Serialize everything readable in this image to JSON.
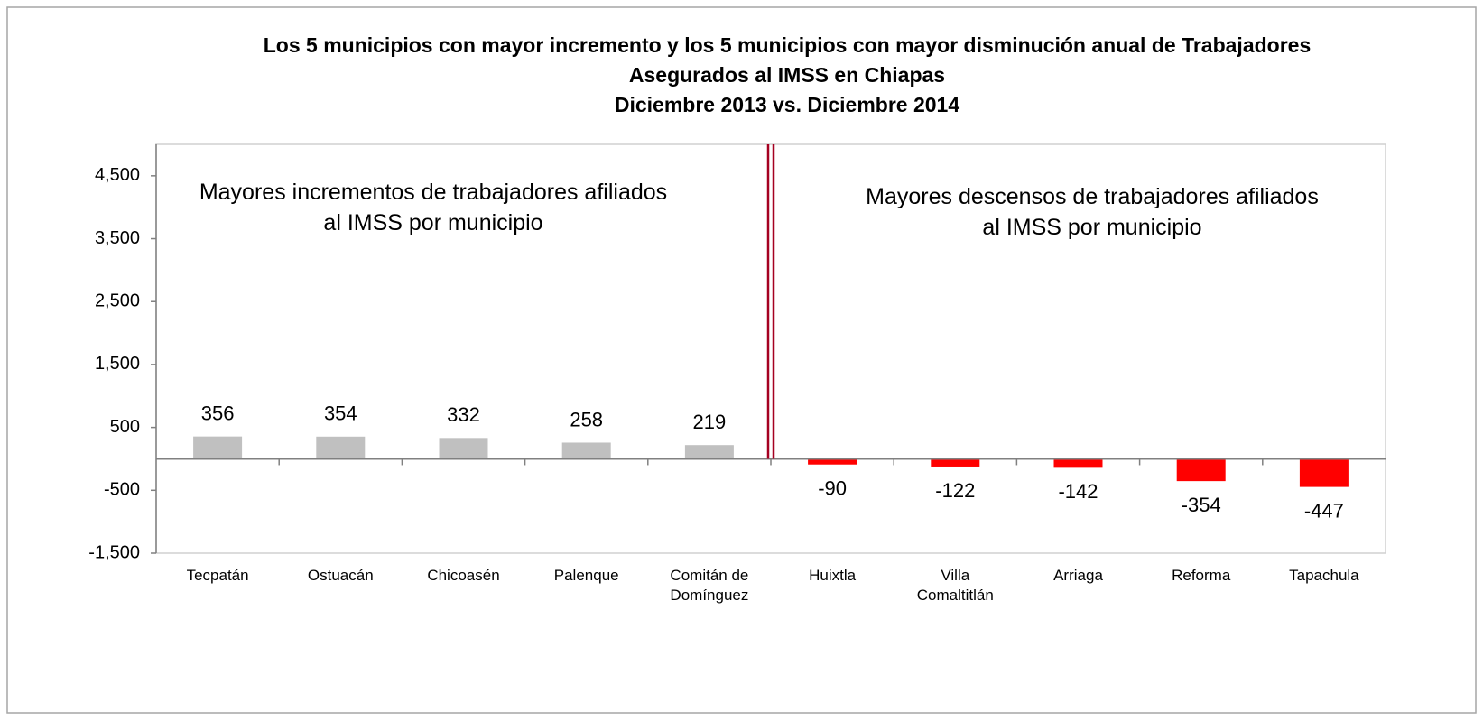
{
  "chart_data": {
    "type": "bar",
    "title": "Los 5 municipios con mayor incremento y los 5 municipios con mayor disminución anual de Trabajadores Asegurados al IMSS en Chiapas",
    "subtitle": "Diciembre 2013 vs. Diciembre 2014",
    "annotations": [
      "Mayores incrementos de trabajadores afiliados al IMSS por municipio",
      "Mayores descensos de trabajadores afiliados al IMSS por municipio"
    ],
    "categories": [
      "Tecpatán",
      "Ostuacán",
      "Chicoasén",
      "Palenque",
      "Comitán de Domínguez",
      "Huixtla",
      "Villa Comaltitlán",
      "Arriaga",
      "Reforma",
      "Tapachula"
    ],
    "values": [
      356,
      354,
      332,
      258,
      219,
      -90,
      -122,
      -142,
      -354,
      -447
    ],
    "colors": [
      "#c0c0c0",
      "#c0c0c0",
      "#c0c0c0",
      "#c0c0c0",
      "#c0c0c0",
      "#ff0000",
      "#ff0000",
      "#ff0000",
      "#ff0000",
      "#ff0000"
    ],
    "ylim": [
      -1500,
      5000
    ],
    "yticks": [
      {
        "value": -1500,
        "label": "-1,500"
      },
      -500,
      500,
      {
        "value": 1500,
        "label": "1,500"
      },
      {
        "value": 2500,
        "label": "2,500"
      },
      {
        "value": 3500,
        "label": "3,500"
      },
      {
        "value": 4500,
        "label": "4,500"
      }
    ],
    "grid": false
  }
}
